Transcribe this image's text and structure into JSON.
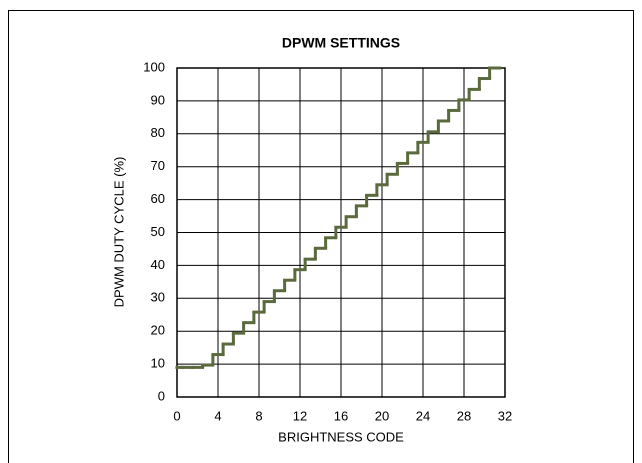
{
  "chart_data": {
    "type": "step",
    "title": "DPWM SETTINGS",
    "xlabel": "BRIGHTNESS CODE",
    "ylabel": "DPWM DUTY CYCLE (%)",
    "x": [
      0,
      1,
      2,
      3,
      4,
      5,
      6,
      7,
      8,
      9,
      10,
      11,
      12,
      13,
      14,
      15,
      16,
      17,
      18,
      19,
      20,
      21,
      22,
      23,
      24,
      25,
      26,
      27,
      28,
      29,
      30,
      31
    ],
    "values": [
      9,
      9,
      9,
      9.7,
      12.9,
      16.1,
      19.4,
      22.6,
      25.8,
      29.0,
      32.3,
      35.5,
      38.7,
      41.9,
      45.2,
      48.4,
      51.6,
      54.8,
      58.1,
      61.3,
      64.5,
      67.7,
      71.0,
      74.2,
      77.4,
      80.6,
      83.9,
      87.1,
      90.3,
      93.5,
      96.8,
      100
    ],
    "color": "#5b6a3c",
    "xlim": [
      0,
      32
    ],
    "xticks": [
      0,
      4,
      8,
      12,
      16,
      20,
      24,
      28,
      32
    ],
    "ylim": [
      0,
      100
    ],
    "yticks": [
      0,
      10,
      20,
      30,
      40,
      50,
      60,
      70,
      80,
      90,
      100
    ],
    "grid": true
  }
}
